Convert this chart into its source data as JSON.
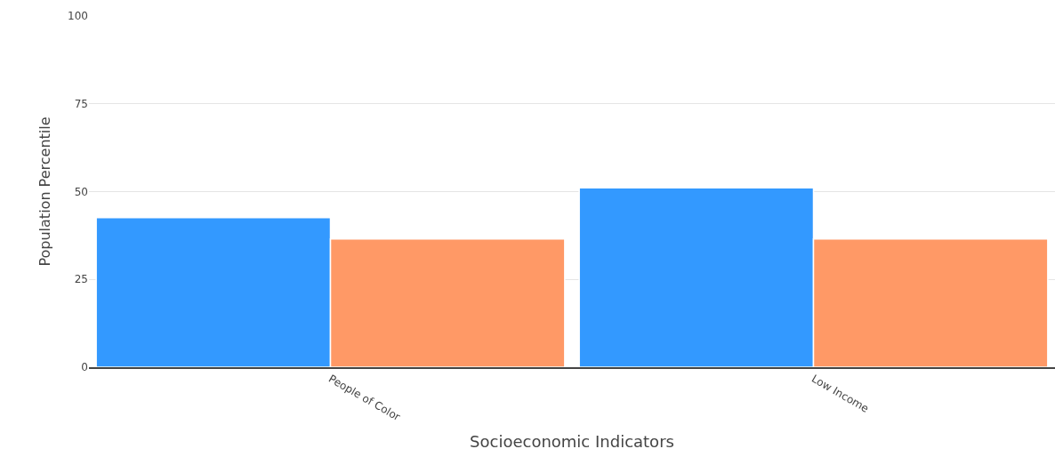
{
  "chart_data": {
    "type": "bar",
    "xlabel": "Socioeconomic Indicators",
    "ylabel": "Population Percentile",
    "categories": [
      "People of Color",
      "Low Income"
    ],
    "series": [
      {
        "color": "#3399ff",
        "values": [
          42.6,
          51.1
        ]
      },
      {
        "color": "#ff9966",
        "values": [
          36.5,
          36.5
        ]
      }
    ],
    "ylim": [
      0,
      100
    ],
    "yticks": [
      0,
      25,
      50,
      75,
      100
    ],
    "grid": "y"
  }
}
